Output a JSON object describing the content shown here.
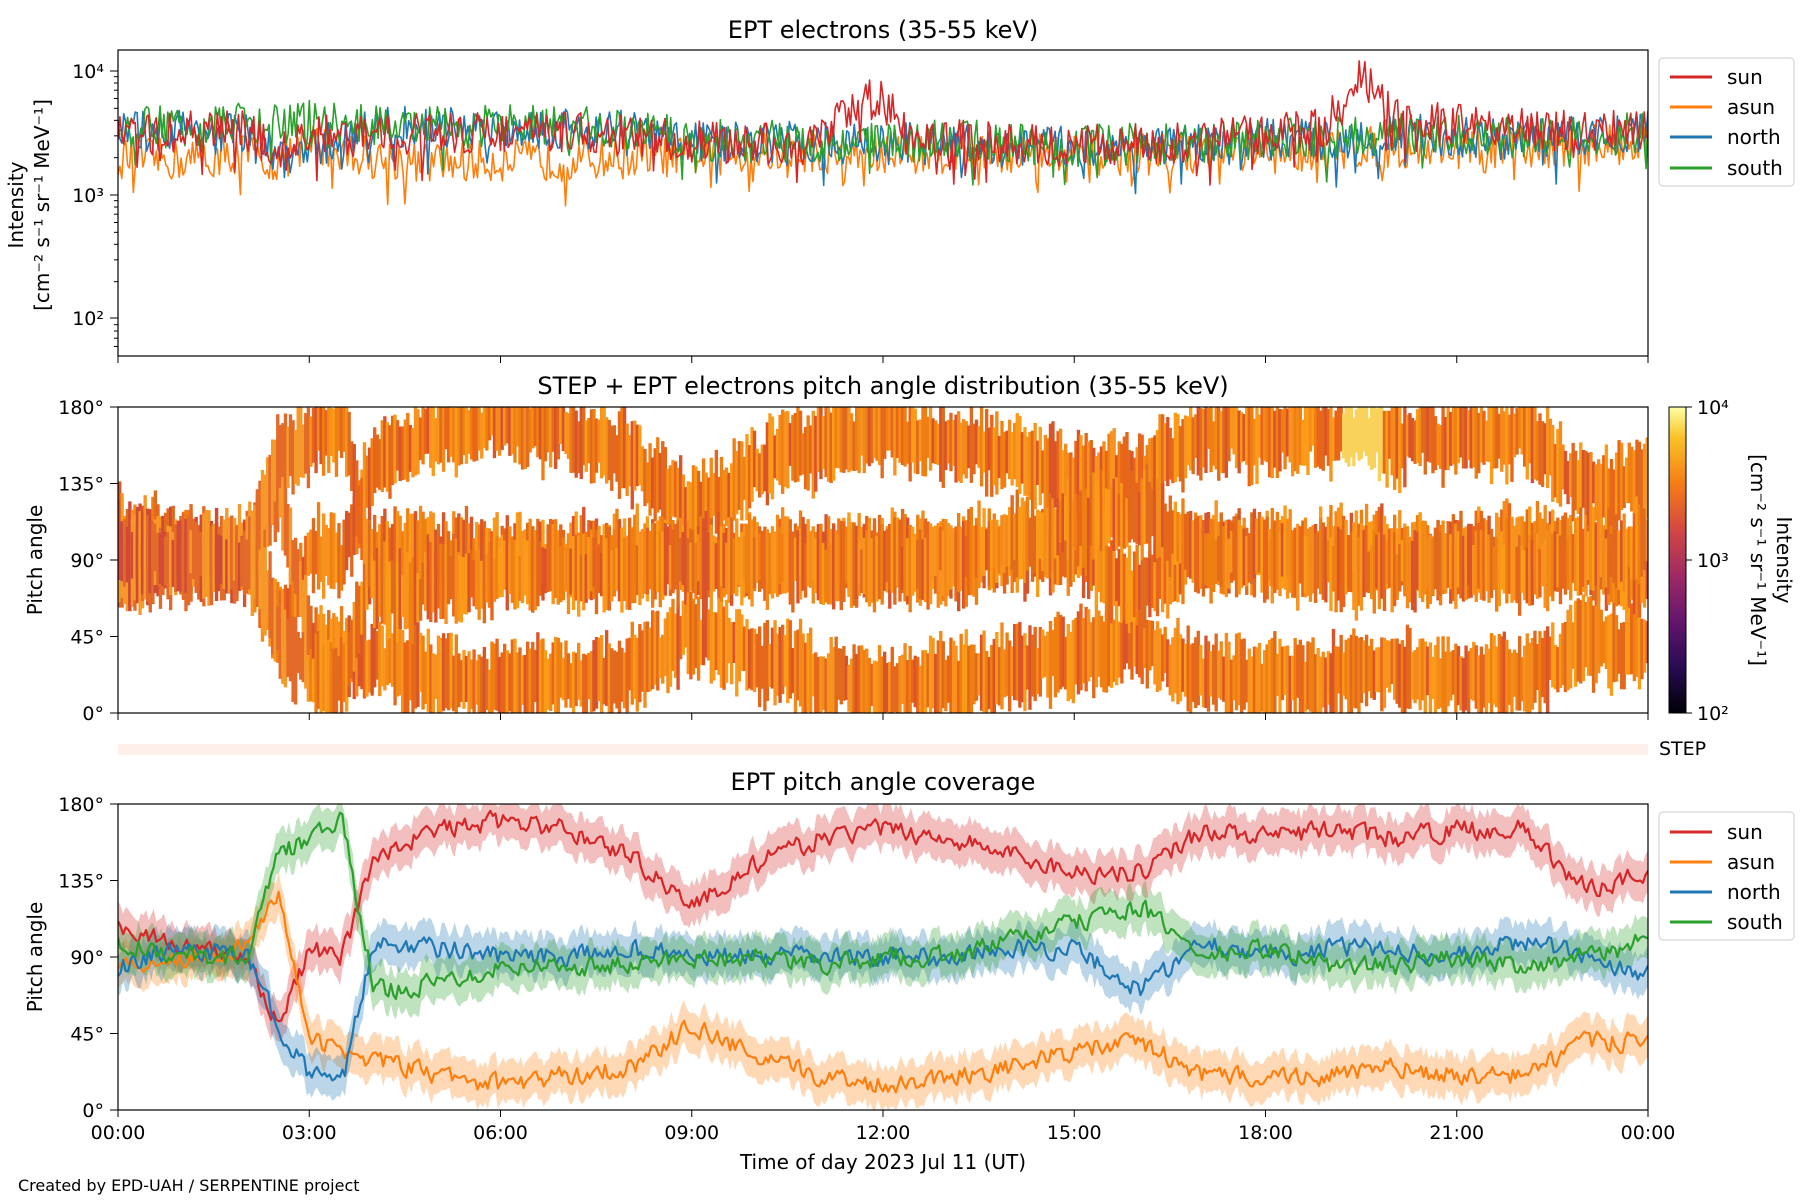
{
  "figure": {
    "credit": "Created by EPD-UAH / SERPENTINE project",
    "xlabel": "Time of day 2023 Jul 11 (UT)",
    "x_ticks": [
      "00:00",
      "03:00",
      "06:00",
      "09:00",
      "12:00",
      "15:00",
      "18:00",
      "21:00",
      "00:00"
    ]
  },
  "colors": {
    "sun": "#d62728",
    "asun": "#ff7f0e",
    "north": "#1f77b4",
    "south": "#2ca02c"
  },
  "panel1": {
    "title": "EPT electrons (35-55 keV)",
    "ylabel_line1": "Intensity",
    "ylabel_line2": "[cm⁻² s⁻¹ sr⁻¹ MeV⁻¹]",
    "y_ticks": [
      "10⁴",
      "10³",
      "10²"
    ],
    "legend": [
      "sun",
      "asun",
      "north",
      "south"
    ]
  },
  "panel2": {
    "title": "STEP + EPT electrons pitch angle distribution (35-55 keV)",
    "ylabel": "Pitch angle",
    "y_ticks": [
      "180°",
      "135°",
      "90°",
      "45°",
      "0°"
    ],
    "colorbar_label_line1": "Intensity",
    "colorbar_label_line2": "[cm⁻² s⁻¹ sr⁻¹ MeV⁻¹]",
    "colorbar_ticks": [
      "10⁴",
      "10³",
      "10²"
    ],
    "step_label": "STEP"
  },
  "panel3": {
    "title": "EPT pitch angle coverage",
    "ylabel": "Pitch angle",
    "y_ticks": [
      "180°",
      "135°",
      "90°",
      "45°",
      "0°"
    ],
    "legend": [
      "sun",
      "asun",
      "north",
      "south"
    ]
  },
  "chart_data": [
    {
      "type": "line",
      "title": "EPT electrons (35-55 keV)",
      "xlabel": "",
      "ylabel": "Intensity [cm⁻² s⁻¹ sr⁻¹ MeV⁻¹]",
      "y_scale": "log",
      "ylim": [
        50,
        15000
      ],
      "xlim_hours": [
        0,
        24
      ],
      "grid": false,
      "legend_position": "outside-right",
      "x_hours": [
        0,
        1,
        2,
        2.5,
        3,
        4,
        5,
        6,
        7,
        8,
        9,
        10,
        11,
        11.9,
        12.4,
        13,
        14,
        15,
        16,
        17,
        18,
        19,
        19.5,
        20,
        21,
        22,
        23,
        24
      ],
      "series": [
        {
          "name": "sun",
          "values": [
            3000,
            3200,
            3300,
            2000,
            3000,
            3000,
            3200,
            3200,
            3200,
            3000,
            2700,
            2600,
            2600,
            6300,
            2800,
            2800,
            2600,
            2500,
            2600,
            2700,
            3100,
            3700,
            9500,
            4000,
            3700,
            3400,
            3300,
            3300
          ]
        },
        {
          "name": "asun",
          "values": [
            2000,
            1900,
            2200,
            1800,
            2600,
            2000,
            1800,
            1900,
            1900,
            2000,
            2100,
            2200,
            2200,
            2100,
            2200,
            2200,
            2200,
            2100,
            2100,
            2200,
            2200,
            2300,
            2400,
            2400,
            2400,
            2400,
            2500,
            2700
          ]
        },
        {
          "name": "north",
          "values": [
            3200,
            3400,
            3300,
            2000,
            2200,
            3600,
            3500,
            3500,
            3500,
            3300,
            2700,
            2600,
            2700,
            2600,
            2600,
            2600,
            2500,
            2400,
            2500,
            2500,
            2800,
            2800,
            2900,
            3100,
            2900,
            2800,
            3000,
            3300
          ]
        },
        {
          "name": "south",
          "values": [
            3400,
            3600,
            3800,
            3600,
            4100,
            3700,
            3500,
            3600,
            3600,
            3400,
            2800,
            2700,
            2700,
            2700,
            2700,
            2800,
            2600,
            2500,
            2600,
            2600,
            2900,
            2900,
            3000,
            3100,
            3000,
            2900,
            3000,
            3300
          ]
        }
      ]
    },
    {
      "type": "heatmap",
      "title": "STEP + EPT electrons pitch angle distribution (35-55 keV)",
      "ylabel": "Pitch angle",
      "ylim_deg": [
        0,
        180
      ],
      "xlim_hours": [
        0,
        24
      ],
      "colorbar": {
        "scale": "log",
        "range": [
          100,
          10000
        ],
        "colormap": "inferno"
      },
      "typical_intensity": 3000,
      "note_values": "intensity generally ~10³–4×10³; peak ~10⁴ near 19:30 at 135–180°"
    },
    {
      "type": "line",
      "title": "EPT pitch angle coverage",
      "ylabel": "Pitch angle",
      "ylim_deg": [
        0,
        180
      ],
      "xlim_hours": [
        0,
        24
      ],
      "legend_position": "outside-right",
      "x_hours": [
        0,
        1,
        2,
        2.5,
        3,
        3.5,
        4,
        5,
        6,
        7,
        8,
        9,
        10,
        11,
        12,
        13,
        14,
        15,
        16,
        17,
        18,
        19,
        20,
        21,
        22,
        23,
        24
      ],
      "series": [
        {
          "name": "sun",
          "values": [
            110,
            95,
            90,
            50,
            95,
            90,
            150,
            165,
            170,
            165,
            150,
            120,
            145,
            160,
            165,
            160,
            150,
            140,
            140,
            165,
            160,
            165,
            160,
            165,
            165,
            130,
            140
          ]
        },
        {
          "name": "asun",
          "values": [
            85,
            90,
            95,
            130,
            40,
            35,
            30,
            20,
            15,
            20,
            25,
            50,
            30,
            20,
            15,
            20,
            25,
            35,
            40,
            20,
            20,
            20,
            25,
            20,
            20,
            40,
            40
          ]
        },
        {
          "name": "north",
          "values": [
            85,
            95,
            90,
            50,
            20,
            15,
            100,
            95,
            90,
            90,
            95,
            90,
            90,
            90,
            90,
            90,
            95,
            95,
            70,
            100,
            90,
            95,
            95,
            90,
            100,
            90,
            80
          ]
        },
        {
          "name": "south",
          "values": [
            100,
            90,
            90,
            150,
            160,
            170,
            70,
            75,
            85,
            85,
            85,
            90,
            90,
            85,
            90,
            90,
            100,
            110,
            120,
            90,
            95,
            85,
            85,
            90,
            85,
            90,
            100
          ]
        }
      ]
    }
  ]
}
